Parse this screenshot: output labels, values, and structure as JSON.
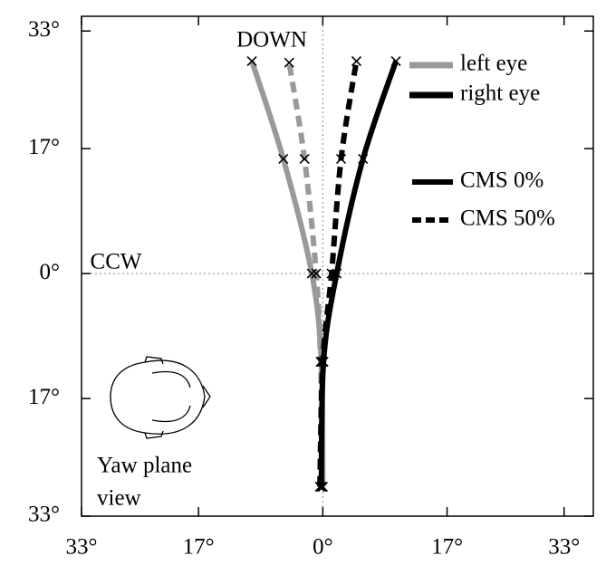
{
  "chart_data": {
    "type": "line",
    "annotations": {
      "top": "DOWN",
      "left": "CCW",
      "view_line1": "Yaw plane",
      "view_line2": "view"
    },
    "xlim": [
      -33,
      37
    ],
    "ylim": [
      -33,
      35
    ],
    "xticks": [
      {
        "value": -33,
        "label": "33°"
      },
      {
        "value": -17,
        "label": "17°"
      },
      {
        "value": 0,
        "label": "0°"
      },
      {
        "value": 17,
        "label": "17°"
      },
      {
        "value": 33,
        "label": "33°"
      }
    ],
    "yticks": [
      {
        "value": 33,
        "label": "33°"
      },
      {
        "value": 17,
        "label": "17°"
      },
      {
        "value": 0,
        "label": "0°"
      },
      {
        "value": -17,
        "label": "17°"
      },
      {
        "value": -33,
        "label": "33°"
      }
    ],
    "eye_legend": [
      {
        "name": "left eye",
        "color": "#999999"
      },
      {
        "name": "right eye",
        "color": "#000000"
      }
    ],
    "style_legend": [
      {
        "name": "CMS 0%",
        "dashed": false
      },
      {
        "name": "CMS 50%",
        "dashed": true
      }
    ],
    "series": [
      {
        "color": "#999999",
        "dashed": false,
        "x": [
          0,
          -0.2,
          -1.5,
          -5.4,
          -9.7
        ],
        "y": [
          -29,
          -12,
          0,
          15.6,
          28.9
        ]
      },
      {
        "color": "#999999",
        "dashed": true,
        "x": [
          0,
          -0.3,
          -0.9,
          -2.5,
          -4.6
        ],
        "y": [
          -29,
          -12,
          0,
          15.6,
          28.7
        ]
      },
      {
        "color": "#000000",
        "dashed": true,
        "x": [
          -0.4,
          0,
          1.2,
          2.5,
          4.6
        ],
        "y": [
          -29,
          -12,
          0,
          15.6,
          28.9
        ]
      },
      {
        "color": "#000000",
        "dashed": false,
        "x": [
          -0.2,
          0.1,
          1.9,
          5.5,
          10
        ],
        "y": [
          -29,
          -12,
          0,
          15.6,
          28.9
        ]
      }
    ]
  }
}
